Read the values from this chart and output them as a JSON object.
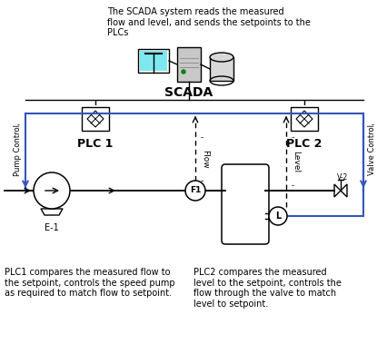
{
  "title_text": "The SCADA system reads the measured\nflow and level, and sends the setpoints to the\nPLCs",
  "scada_label": "SCADA",
  "plc1_label": "PLC 1",
  "plc2_label": "PLC 2",
  "pump_label": "E-1",
  "flow_label": "Flow",
  "level_label": "Level",
  "flow_instrument": "F1",
  "valve_label": "V-2",
  "pump_control": "Pump Control",
  "valve_control": "Valve Control",
  "plc1_desc": "PLC1 compares the measured flow to\nthe setpoint, controls the speed pump\nas required to match flow to setpoint.",
  "plc2_desc": "PLC2 compares the measured\nlevel to the setpoint, controls the\nflow through the valve to match\nlevel to setpoint.",
  "bg_color": "#ffffff",
  "line_color": "#000000",
  "blue_line_color": "#3355bb",
  "text_color": "#000000",
  "dpi": 100,
  "figw": 4.26,
  "figh": 3.79,
  "monitor_color": "#7de8f0",
  "tower_color": "#c8c8c8",
  "db_color": "#d8d8d8"
}
